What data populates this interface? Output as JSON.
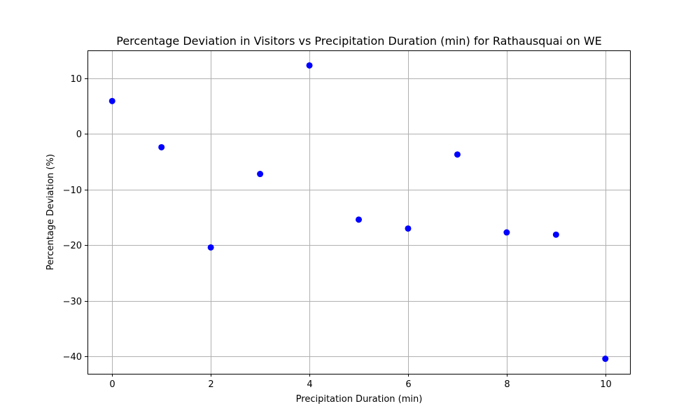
{
  "chart_data": {
    "type": "scatter",
    "title": "Percentage Deviation in Visitors vs Precipitation Duration (min) for Rathausquai on WE",
    "xlabel": "Precipitation Duration (min)",
    "ylabel": "Percentage Deviation (%)",
    "xlim": [
      -0.5,
      10.5
    ],
    "ylim": [
      -43.1,
      15.0
    ],
    "xticks": [
      0,
      2,
      4,
      6,
      8,
      10
    ],
    "yticks": [
      -40,
      -30,
      -20,
      -10,
      0,
      10
    ],
    "xtick_labels": [
      "0",
      "2",
      "4",
      "6",
      "8",
      "10"
    ],
    "ytick_labels": [
      "−40",
      "−30",
      "−20",
      "−10",
      "0",
      "10"
    ],
    "grid": true,
    "marker_color": "#0000ff",
    "x": [
      0,
      1,
      2,
      3,
      4,
      5,
      6,
      7,
      8,
      9,
      10
    ],
    "y": [
      5.9,
      -2.4,
      -20.4,
      -7.2,
      12.3,
      -15.4,
      -17.0,
      -3.7,
      -17.7,
      -18.1,
      -40.4
    ]
  }
}
